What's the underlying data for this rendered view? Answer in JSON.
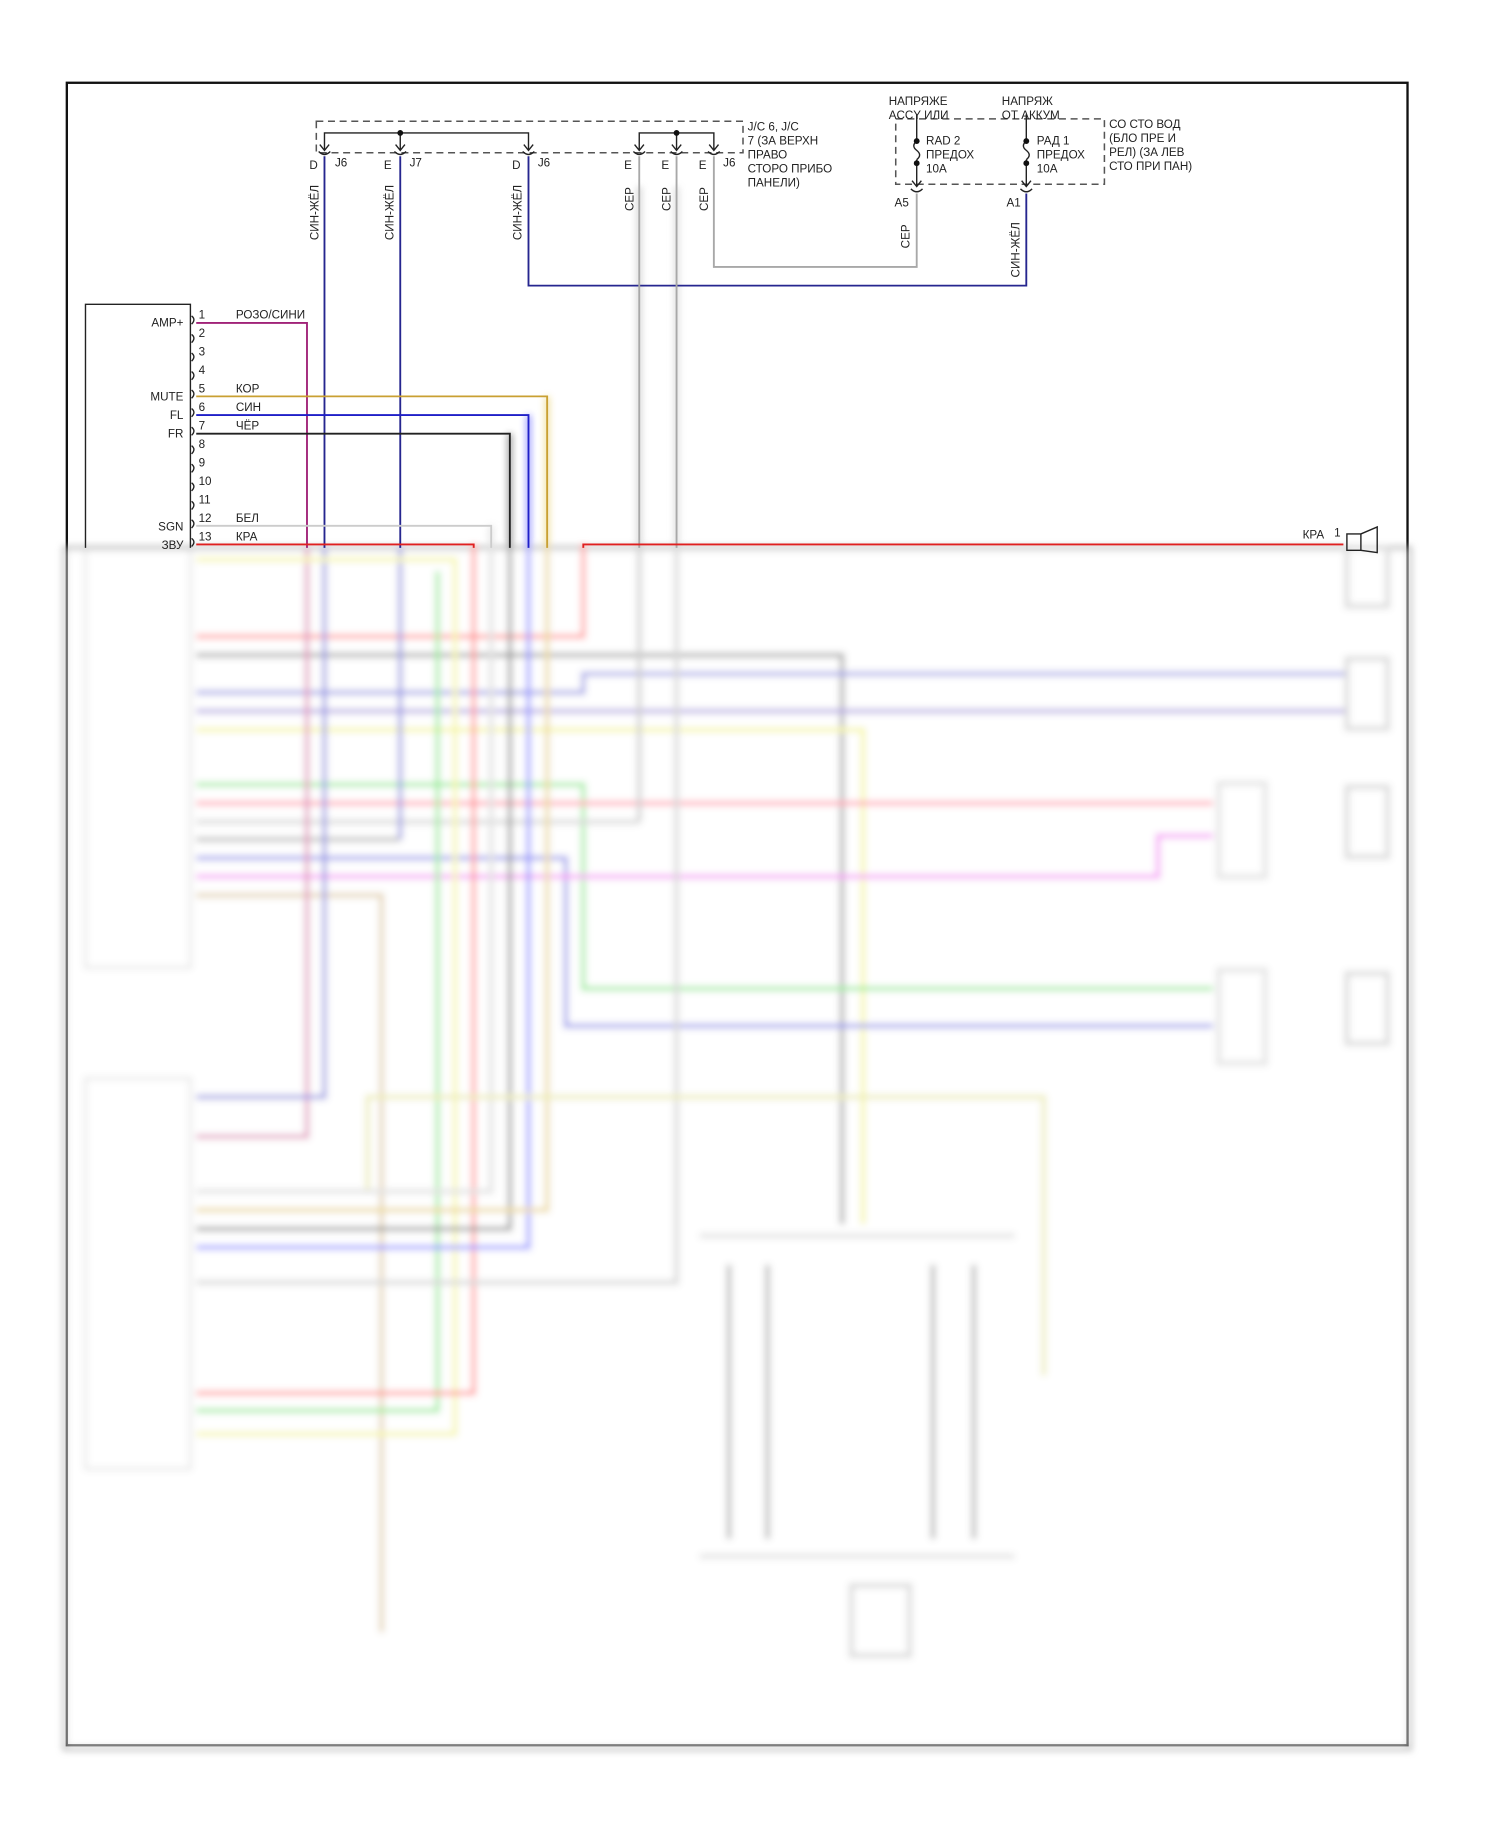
{
  "junction_box": {
    "label_lines": [
      "J/C 6, J/C",
      "7 (ЗА ВЕРХН",
      "ПРАВО",
      "СТОРО ПРИБО",
      "ПАНЕЛИ)"
    ],
    "pins": [
      {
        "letter": "D",
        "connector": "J6",
        "wire": "СИН-ЖЁЛ"
      },
      {
        "letter": "E",
        "connector": "J7",
        "wire": "СИН-ЖЁЛ"
      },
      {
        "letter": "D",
        "connector": "J6",
        "wire": "СИН-ЖЁЛ"
      },
      {
        "letter": "E",
        "connector": "",
        "wire": "СЕР"
      },
      {
        "letter": "E",
        "connector": "",
        "wire": "СЕР"
      },
      {
        "letter": "E",
        "connector": "J6",
        "wire": "СЕР"
      }
    ]
  },
  "fuse_box": {
    "supply_left": [
      "НАПРЯЖЕ",
      "ACCY ИЛИ"
    ],
    "supply_right": [
      "НАПРЯЖ",
      "ОТ АККУМ"
    ],
    "fuse_left": [
      "RAD 2",
      "ПРЕДОХ",
      "10А"
    ],
    "fuse_right": [
      "РАД 1",
      "ПРЕДОХ",
      "10А"
    ],
    "label_lines": [
      "СО СТО ВОД",
      "(БЛО ПРЕ И",
      "РЕЛ) (ЗА ЛЕВ",
      "СТО ПРИ ПАН)"
    ],
    "pin_left": "A5",
    "pin_right": "A1",
    "wire_left": "СЕР",
    "wire_right": "СИН-ЖЁЛ"
  },
  "connector": {
    "pins": [
      {
        "num": "1",
        "signal": "AMP+",
        "wire": "РОЗО/СИНИ"
      },
      {
        "num": "2",
        "signal": "",
        "wire": ""
      },
      {
        "num": "3",
        "signal": "",
        "wire": ""
      },
      {
        "num": "4",
        "signal": "",
        "wire": ""
      },
      {
        "num": "5",
        "signal": "MUTE",
        "wire": "КОР"
      },
      {
        "num": "6",
        "signal": "FL",
        "wire": "СИН"
      },
      {
        "num": "7",
        "signal": "FR",
        "wire": "ЧЁР"
      },
      {
        "num": "8",
        "signal": "",
        "wire": ""
      },
      {
        "num": "9",
        "signal": "",
        "wire": ""
      },
      {
        "num": "10",
        "signal": "",
        "wire": ""
      },
      {
        "num": "11",
        "signal": "",
        "wire": ""
      },
      {
        "num": "12",
        "signal": "SGN",
        "wire": "БЕЛ"
      },
      {
        "num": "13",
        "signal": "ЗВУ",
        "wire": "КРА"
      }
    ]
  },
  "speaker": {
    "wire": "КРА",
    "pin": "1"
  },
  "colors": {
    "navy": "#26268f",
    "gray": "#a8a8a8",
    "purple": "#a02278",
    "gold": "#c9a032",
    "blue": "#1f1fc8",
    "black": "#222222",
    "white_wire": "#cccccc",
    "red": "#e02020"
  }
}
